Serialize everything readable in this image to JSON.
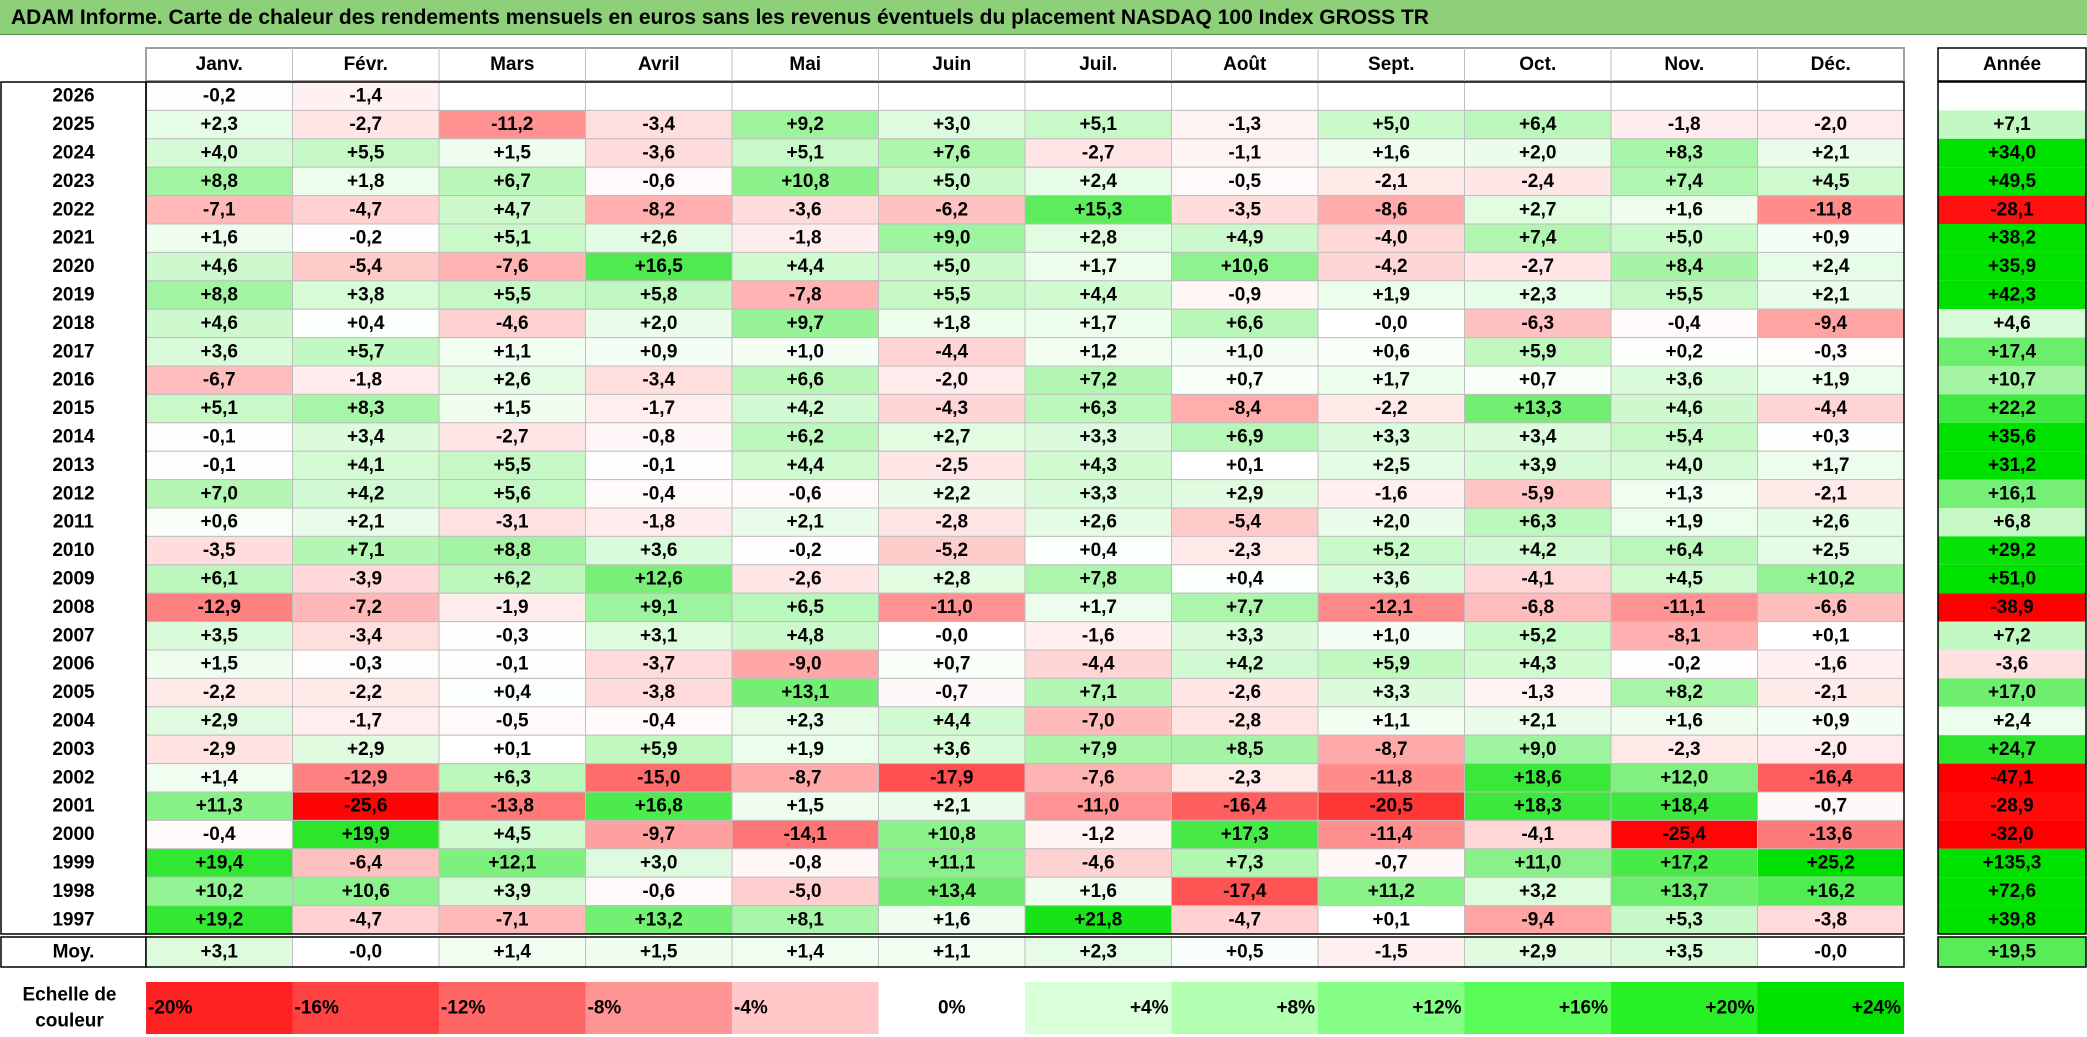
{
  "title": "ADAM Informe. Carte de chaleur des rendements mensuels en euros sans les revenus éventuels du placement NASDAQ 100 Index GROSS TR",
  "chart_data": {
    "type": "heatmap",
    "months": [
      "Janv.",
      "Févr.",
      "Mars",
      "Avril",
      "Mai",
      "Juin",
      "Juil.",
      "Août",
      "Sept.",
      "Oct.",
      "Nov.",
      "Déc."
    ],
    "year_column_label": "Année",
    "rows": [
      {
        "year": "2026",
        "months": [
          -0.2,
          -1.4,
          null,
          null,
          null,
          null,
          null,
          null,
          null,
          null,
          null,
          null
        ],
        "annual": null
      },
      {
        "year": "2025",
        "months": [
          2.3,
          -2.7,
          -11.2,
          -3.4,
          9.2,
          3.0,
          5.1,
          -1.3,
          5.0,
          6.4,
          -1.8,
          -2.0
        ],
        "annual": 7.1
      },
      {
        "year": "2024",
        "months": [
          4.0,
          5.5,
          1.5,
          -3.6,
          5.1,
          7.6,
          -2.7,
          -1.1,
          1.6,
          2.0,
          8.3,
          2.1
        ],
        "annual": 34.0
      },
      {
        "year": "2023",
        "months": [
          8.8,
          1.8,
          6.7,
          -0.6,
          10.8,
          5.0,
          2.4,
          -0.5,
          -2.1,
          -2.4,
          7.4,
          4.5
        ],
        "annual": 49.5
      },
      {
        "year": "2022",
        "months": [
          -7.1,
          -4.7,
          4.7,
          -8.2,
          -3.6,
          -6.2,
          15.3,
          -3.5,
          -8.6,
          2.7,
          1.6,
          -11.8
        ],
        "annual": -28.1
      },
      {
        "year": "2021",
        "months": [
          1.6,
          -0.2,
          5.1,
          2.6,
          -1.8,
          9.0,
          2.8,
          4.9,
          -4.0,
          7.4,
          5.0,
          0.9
        ],
        "annual": 38.2
      },
      {
        "year": "2020",
        "months": [
          4.6,
          -5.4,
          -7.6,
          16.5,
          4.4,
          5.0,
          1.7,
          10.6,
          -4.2,
          -2.7,
          8.4,
          2.4
        ],
        "annual": 35.9
      },
      {
        "year": "2019",
        "months": [
          8.8,
          3.8,
          5.5,
          5.8,
          -7.8,
          5.5,
          4.4,
          -0.9,
          1.9,
          2.3,
          5.5,
          2.1
        ],
        "annual": 42.3
      },
      {
        "year": "2018",
        "months": [
          4.6,
          0.4,
          -4.6,
          2.0,
          9.7,
          1.8,
          1.7,
          6.6,
          "-0,0",
          -6.3,
          -0.4,
          -9.4
        ],
        "annual": 4.6
      },
      {
        "year": "2017",
        "months": [
          3.6,
          5.7,
          1.1,
          0.9,
          1.0,
          -4.4,
          1.2,
          1.0,
          0.6,
          5.9,
          0.2,
          -0.3
        ],
        "annual": 17.4
      },
      {
        "year": "2016",
        "months": [
          -6.7,
          -1.8,
          2.6,
          -3.4,
          6.6,
          -2.0,
          7.2,
          0.7,
          1.7,
          0.7,
          3.6,
          1.9
        ],
        "annual": 10.7
      },
      {
        "year": "2015",
        "months": [
          5.1,
          8.3,
          1.5,
          -1.7,
          4.2,
          -4.3,
          6.3,
          -8.4,
          -2.2,
          13.3,
          4.6,
          -4.4
        ],
        "annual": 22.2
      },
      {
        "year": "2014",
        "months": [
          -0.1,
          3.4,
          -2.7,
          -0.8,
          6.2,
          2.7,
          3.3,
          6.9,
          3.3,
          3.4,
          5.4,
          0.3
        ],
        "annual": 35.6
      },
      {
        "year": "2013",
        "months": [
          -0.1,
          4.1,
          5.5,
          -0.1,
          4.4,
          -2.5,
          4.3,
          0.1,
          2.5,
          3.9,
          4.0,
          1.7
        ],
        "annual": 31.2
      },
      {
        "year": "2012",
        "months": [
          7.0,
          4.2,
          5.6,
          -0.4,
          -0.6,
          2.2,
          3.3,
          2.9,
          -1.6,
          -5.9,
          1.3,
          -2.1
        ],
        "annual": 16.1
      },
      {
        "year": "2011",
        "months": [
          0.6,
          2.1,
          -3.1,
          -1.8,
          2.1,
          -2.8,
          2.6,
          -5.4,
          2.0,
          6.3,
          1.9,
          2.6
        ],
        "annual": 6.8
      },
      {
        "year": "2010",
        "months": [
          -3.5,
          7.1,
          8.8,
          3.6,
          -0.2,
          -5.2,
          0.4,
          -2.3,
          5.2,
          4.2,
          6.4,
          2.5
        ],
        "annual": 29.2
      },
      {
        "year": "2009",
        "months": [
          6.1,
          -3.9,
          6.2,
          12.6,
          -2.6,
          2.8,
          7.8,
          0.4,
          3.6,
          -4.1,
          4.5,
          10.2
        ],
        "annual": 51.0
      },
      {
        "year": "2008",
        "months": [
          -12.9,
          -7.2,
          -1.9,
          9.1,
          6.5,
          -11.0,
          1.7,
          7.7,
          -12.1,
          -6.8,
          -11.1,
          -6.6
        ],
        "annual": -38.9
      },
      {
        "year": "2007",
        "months": [
          3.5,
          -3.4,
          -0.3,
          3.1,
          4.8,
          "-0,0",
          -1.6,
          3.3,
          1.0,
          5.2,
          -8.1,
          0.1
        ],
        "annual": 7.2
      },
      {
        "year": "2006",
        "months": [
          1.5,
          -0.3,
          -0.1,
          -3.7,
          -9.0,
          0.7,
          -4.4,
          4.2,
          5.9,
          4.3,
          -0.2,
          -1.6
        ],
        "annual": -3.6
      },
      {
        "year": "2005",
        "months": [
          -2.2,
          -2.2,
          0.4,
          -3.8,
          13.1,
          -0.7,
          7.1,
          -2.6,
          3.3,
          -1.3,
          8.2,
          -2.1
        ],
        "annual": 17.0
      },
      {
        "year": "2004",
        "months": [
          2.9,
          -1.7,
          -0.5,
          -0.4,
          2.3,
          4.4,
          -7.0,
          -2.8,
          1.1,
          2.1,
          1.6,
          0.9
        ],
        "annual": 2.4
      },
      {
        "year": "2003",
        "months": [
          -2.9,
          2.9,
          0.1,
          5.9,
          1.9,
          3.6,
          7.9,
          8.5,
          -8.7,
          9.0,
          -2.3,
          -2.0
        ],
        "annual": 24.7
      },
      {
        "year": "2002",
        "months": [
          1.4,
          -12.9,
          6.3,
          -15.0,
          -8.7,
          -17.9,
          -7.6,
          -2.3,
          -11.8,
          18.6,
          12.0,
          -16.4
        ],
        "annual": -47.1
      },
      {
        "year": "2001",
        "months": [
          11.3,
          -25.6,
          -13.8,
          16.8,
          1.5,
          2.1,
          -11.0,
          -16.4,
          -20.5,
          18.3,
          18.4,
          -0.7
        ],
        "annual": -28.9
      },
      {
        "year": "2000",
        "months": [
          -0.4,
          19.9,
          4.5,
          -9.7,
          -14.1,
          10.8,
          -1.2,
          17.3,
          -11.4,
          -4.1,
          -25.4,
          -13.6
        ],
        "annual": -32.0
      },
      {
        "year": "1999",
        "months": [
          19.4,
          -6.4,
          12.1,
          3.0,
          -0.8,
          11.1,
          -4.6,
          7.3,
          -0.7,
          11.0,
          17.2,
          25.2
        ],
        "annual": 135.3
      },
      {
        "year": "1998",
        "months": [
          10.2,
          10.6,
          3.9,
          -0.6,
          -5.0,
          13.4,
          1.6,
          -17.4,
          11.2,
          3.2,
          13.7,
          16.2
        ],
        "annual": 72.6
      },
      {
        "year": "1997",
        "months": [
          19.2,
          -4.7,
          -7.1,
          13.2,
          8.1,
          1.6,
          21.8,
          -4.7,
          0.1,
          -9.4,
          5.3,
          -3.8
        ],
        "annual": 39.8
      }
    ],
    "average": {
      "label": "Moy.",
      "months": [
        3.1,
        "-0,0",
        1.4,
        1.5,
        1.4,
        1.1,
        2.3,
        0.5,
        -1.5,
        2.9,
        3.5,
        "-0,0"
      ],
      "annual": 19.5
    },
    "color_scale": {
      "label_line1": "Echelle de",
      "label_line2": "couleur",
      "stops": [
        {
          "label": "-20%",
          "color": "#ff2121"
        },
        {
          "label": "-16%",
          "color": "#ff4242"
        },
        {
          "label": "-12%",
          "color": "#ff6767"
        },
        {
          "label": "-8%",
          "color": "#ff9494"
        },
        {
          "label": "-4%",
          "color": "#ffc7c7"
        },
        {
          "label": "0%",
          "color": "#ffffff"
        },
        {
          "label": "+4%",
          "color": "#d9ffd9"
        },
        {
          "label": "+8%",
          "color": "#b2ffb2"
        },
        {
          "label": "+12%",
          "color": "#85ff85"
        },
        {
          "label": "+16%",
          "color": "#58fb58"
        },
        {
          "label": "+20%",
          "color": "#27f027"
        },
        {
          "label": "+24%",
          "color": "#00e100"
        }
      ]
    },
    "colors": {
      "positive_max": "#00e100",
      "negative_max": "#ff0000",
      "neutral": "#ffffff",
      "grid": "#bfbfbf",
      "border": "#000000",
      "title_bar": "#8ecf7a"
    }
  }
}
